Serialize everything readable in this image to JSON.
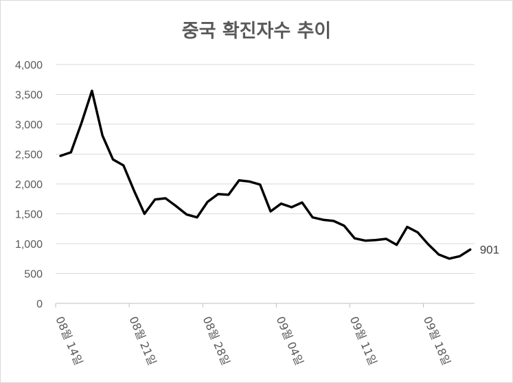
{
  "chart_data": {
    "type": "line",
    "title": "중국 확진자수 추이",
    "xlabel": "",
    "ylabel": "",
    "ylim": [
      0,
      4000
    ],
    "yticks": [
      0,
      500,
      1000,
      1500,
      2000,
      2500,
      3000,
      3500,
      4000
    ],
    "ytick_labels": [
      "0",
      "500",
      "1,000",
      "1,500",
      "2,000",
      "2,500",
      "3,000",
      "3,500",
      "4,000"
    ],
    "x_tick_labels": [
      "08월 14일",
      "08월 21일",
      "08월 28일",
      "09월 04일",
      "09월 11일",
      "09월 18일"
    ],
    "grid": "horizontal",
    "legend": "none",
    "line_color": "#000000",
    "series": [
      {
        "values": [
          2470,
          2530,
          3020,
          3560,
          2810,
          2410,
          2310,
          1890,
          1500,
          1740,
          1760,
          1630,
          1490,
          1440,
          1700,
          1830,
          1820,
          2060,
          2040,
          1990,
          1540,
          1670,
          1610,
          1690,
          1440,
          1400,
          1380,
          1300,
          1090,
          1050,
          1060,
          1080,
          980,
          1280,
          1190,
          990,
          820,
          750,
          790,
          901
        ]
      }
    ],
    "data_label": {
      "text": "901"
    }
  }
}
